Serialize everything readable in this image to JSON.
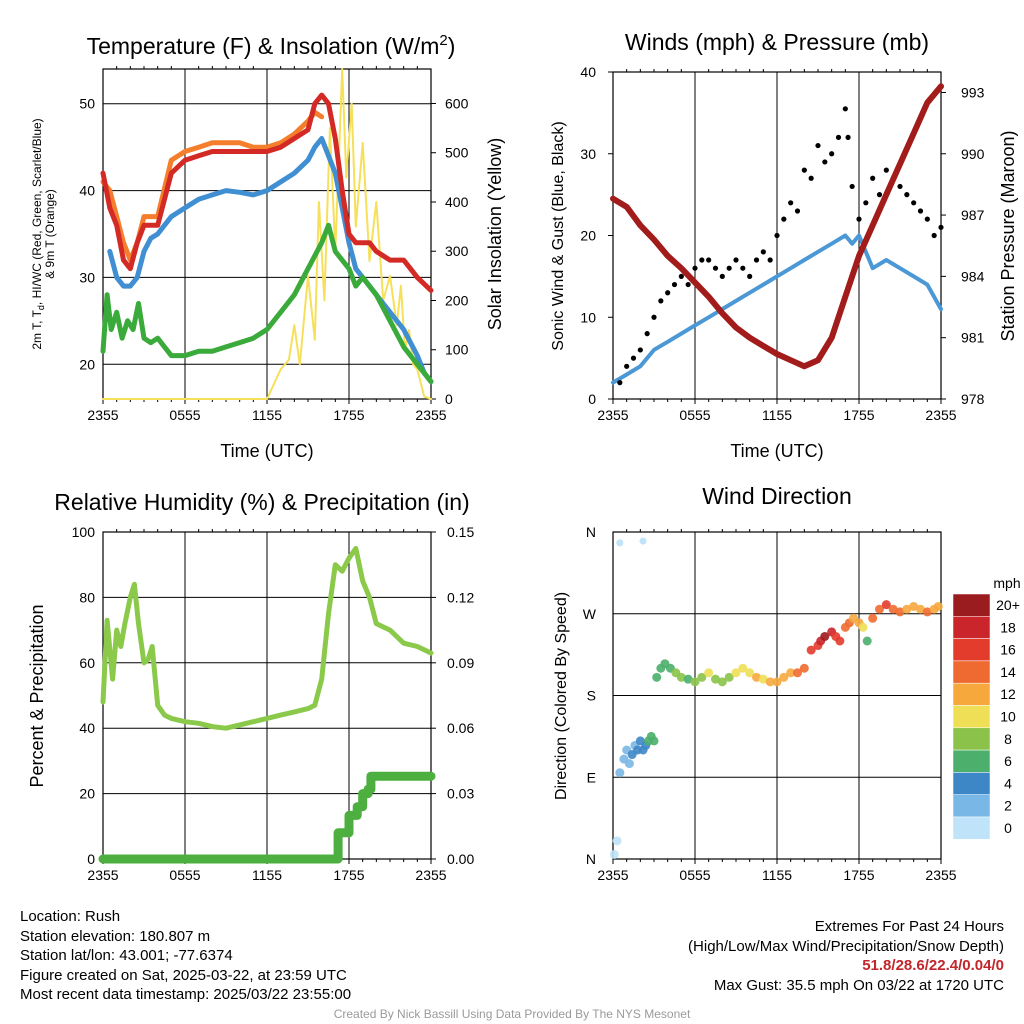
{
  "colors": {
    "temp": "#d42a26",
    "dew": "#3aaa3a",
    "hiwc": "#3f8fd2",
    "t9m": "#f47e2b",
    "insolation": "#f6e05a",
    "wind": "#4b98d6",
    "gust": "#000000",
    "pressure": "#a21c1c",
    "rh": "#8bc94a",
    "precip": "#4caf3f"
  },
  "chart_data": [
    {
      "id": "temperature",
      "type": "line",
      "title": "Temperature (F) & Insolation (W/m²)",
      "title_main": "Temperature (F) & Insolation (W/m",
      "title_sup": "2",
      "title_end": ")",
      "xlabel": "Time (UTC)",
      "ylabel": "2m T, Td, HI/WC (Red, Green, Scarlet/Blue) & 9m T (Orange)",
      "ylabel_line1": "2m T, T",
      "ylabel_sub": "d",
      "ylabel_line1_end": ", HI/WC (Red, Green, Scarlet/Blue)",
      "ylabel_line2": "& 9m T (Orange)",
      "y2label": "Solar Insolation (Yellow)",
      "x_ticks": [
        "2355",
        "0555",
        "1155",
        "1755",
        "2355"
      ],
      "ylim": [
        16,
        54
      ],
      "y_ticks": [
        20,
        30,
        40,
        50
      ],
      "y2lim": [
        0,
        670
      ],
      "y2_ticks": [
        0,
        100,
        200,
        300,
        400,
        500,
        600
      ],
      "series": [
        {
          "name": "Solar Insolation",
          "color": "insolation",
          "x": [
            0,
            12,
            13,
            13.6,
            14,
            14.4,
            15,
            15.5,
            15.8,
            16.2,
            16.6,
            17,
            17.5,
            17.8,
            18.2,
            18.5,
            19,
            19.5,
            20,
            20.5,
            21,
            21.5,
            21.8,
            22.1,
            22.4,
            22.7,
            23,
            23.5,
            24
          ],
          "y": [
            0,
            0,
            60,
            80,
            150,
            70,
            250,
            120,
            400,
            200,
            550,
            300,
            670,
            450,
            600,
            350,
            520,
            280,
            400,
            200,
            250,
            150,
            230,
            100,
            140,
            70,
            60,
            5,
            0
          ]
        },
        {
          "name": "HI/WC",
          "color": "hiwc",
          "x": [
            0.5,
            1,
            1.5,
            2,
            2.5,
            3,
            3.5,
            4,
            5,
            6,
            7,
            8,
            9,
            10,
            11,
            12,
            13,
            14,
            15,
            15.5,
            16,
            16.5,
            17,
            17.5,
            18,
            18.5,
            19,
            20,
            21,
            22,
            23,
            23.5,
            24
          ],
          "y": [
            33,
            30,
            29,
            29,
            30,
            33,
            34.5,
            35,
            37,
            38,
            39,
            39.5,
            40,
            39.8,
            39.5,
            40,
            41,
            42,
            43.5,
            45,
            46,
            44,
            42,
            38,
            34,
            31,
            30,
            28,
            26,
            24,
            21,
            19,
            18
          ]
        },
        {
          "name": "9m T",
          "color": "t9m",
          "x": [
            0,
            0.5,
            1,
            1.5,
            2,
            2.5,
            3,
            3.5,
            4,
            5,
            6,
            7,
            8,
            9,
            10,
            11,
            12,
            13,
            14,
            15,
            15.5,
            16
          ],
          "y": [
            41,
            40,
            37,
            34,
            32,
            34,
            37,
            37,
            37,
            43.5,
            44.5,
            45,
            45.5,
            45.5,
            45.5,
            45,
            45,
            45.5,
            46.5,
            48,
            49,
            48.5
          ]
        },
        {
          "name": "Dewpoint",
          "color": "dew",
          "x": [
            0,
            0.3,
            0.6,
            1,
            1.4,
            1.8,
            2.2,
            2.6,
            3,
            3.5,
            4,
            4.5,
            5,
            6,
            7,
            8,
            9,
            10,
            11,
            12,
            13,
            14,
            15,
            16,
            16.5,
            17,
            18,
            18.5,
            19,
            20,
            21,
            22,
            23,
            24
          ],
          "y": [
            21.5,
            28,
            24,
            26,
            23,
            25,
            24,
            27,
            23,
            22.5,
            23,
            22,
            21,
            21,
            21.5,
            21.5,
            22,
            22.5,
            23,
            24,
            26,
            28,
            31,
            34,
            36,
            33,
            31,
            29,
            30,
            28,
            25,
            22,
            20,
            18
          ]
        },
        {
          "name": "2m T",
          "color": "temp",
          "x": [
            0,
            0.5,
            1,
            1.5,
            2,
            2.5,
            3,
            3.5,
            4,
            5,
            6,
            7,
            8,
            9,
            10,
            11,
            12,
            13,
            14,
            15,
            15.5,
            16,
            16.5,
            17,
            17.5,
            18,
            18.5,
            19,
            19.5,
            20,
            21,
            22,
            23,
            24
          ],
          "y": [
            42,
            38,
            36,
            32,
            31,
            34,
            36,
            36,
            36,
            42,
            43.5,
            44,
            44.5,
            44.5,
            44.5,
            44.5,
            44.5,
            45,
            46,
            47,
            50,
            51,
            50,
            46,
            40,
            35,
            34,
            34,
            34,
            33,
            32,
            32,
            30,
            28.5
          ]
        }
      ]
    },
    {
      "id": "winds",
      "type": "line",
      "title": "Winds (mph) & Pressure (mb)",
      "xlabel": "Time (UTC)",
      "ylabel": "Sonic Wind & Gust (Blue, Black)",
      "y2label": "Station Pressure (Maroon)",
      "x_ticks": [
        "2355",
        "0555",
        "1155",
        "1755",
        "2355"
      ],
      "ylim": [
        0,
        40
      ],
      "y_ticks": [
        0,
        10,
        20,
        30,
        40
      ],
      "y2lim": [
        978,
        994
      ],
      "y2_ticks": [
        978,
        981,
        984,
        987,
        990,
        993
      ],
      "series": [
        {
          "name": "Sonic Wind",
          "color": "wind",
          "x": [
            0,
            1,
            2,
            3,
            4,
            5,
            6,
            7,
            8,
            9,
            10,
            11,
            12,
            13,
            14,
            15,
            16,
            17,
            17.5,
            18,
            19,
            20,
            21,
            22,
            23,
            24
          ],
          "y": [
            2,
            3,
            4,
            6,
            7,
            8,
            9,
            10,
            11,
            12,
            13,
            14,
            15,
            16,
            17,
            18,
            19,
            20,
            19,
            20,
            16,
            17,
            16,
            15,
            14,
            11
          ]
        },
        {
          "name": "Gust",
          "color": "gust",
          "style": "points",
          "x": [
            0.5,
            1,
            1.5,
            2,
            2.5,
            3,
            3.5,
            4,
            4.5,
            5,
            5.5,
            6,
            6.5,
            7,
            7.5,
            8,
            8.5,
            9,
            9.5,
            10,
            10.5,
            11,
            11.5,
            12,
            12.5,
            13,
            13.5,
            14,
            14.5,
            15,
            15.5,
            16,
            16.5,
            17,
            17.2,
            17.5,
            18,
            18.5,
            19,
            19.5,
            20,
            20.5,
            21,
            21.5,
            22,
            22.5,
            23,
            23.5,
            24
          ],
          "y": [
            2,
            4,
            5,
            6,
            8,
            10,
            12,
            13,
            14,
            15,
            14,
            16,
            17,
            17,
            16,
            15,
            16,
            17,
            16,
            15,
            17,
            18,
            17,
            20,
            22,
            24,
            23,
            28,
            27,
            31,
            29,
            30,
            32,
            35.5,
            32,
            26,
            22,
            24,
            27,
            25,
            28,
            27,
            26,
            25,
            24,
            23,
            22,
            20,
            21
          ]
        },
        {
          "name": "Station Pressure",
          "color": "pressure",
          "x": [
            0,
            1,
            2,
            3,
            4,
            5,
            6,
            7,
            8,
            9,
            10,
            11,
            12,
            13,
            14,
            15,
            16,
            17,
            18,
            19,
            20,
            21,
            22,
            23,
            24
          ],
          "y": [
            987.8,
            987.4,
            986.5,
            985.8,
            985.0,
            984.4,
            983.7,
            983.0,
            982.2,
            981.5,
            981.0,
            980.6,
            980.2,
            979.9,
            979.6,
            979.9,
            981,
            983,
            985,
            986.5,
            988,
            989.5,
            991,
            992.5,
            993.3
          ]
        }
      ]
    },
    {
      "id": "humidity",
      "type": "line",
      "title": "Relative Humidity (%) & Precipitation (in)",
      "ylabel": "Percent & Precipitation",
      "x_ticks": [
        "2355",
        "0555",
        "1155",
        "1755",
        "2355"
      ],
      "ylim": [
        0,
        100
      ],
      "y_ticks": [
        0,
        20,
        40,
        60,
        80,
        100
      ],
      "y2lim": [
        0,
        0.15
      ],
      "y2_ticks": [
        "0.00",
        "0.03",
        "0.06",
        "0.09",
        "0.12",
        "0.15"
      ],
      "series": [
        {
          "name": "Relative Humidity",
          "color": "rh",
          "x": [
            0,
            0.3,
            0.7,
            1,
            1.3,
            1.6,
            2,
            2.3,
            2.6,
            3,
            3.3,
            3.6,
            4,
            4.5,
            5,
            6,
            7,
            8,
            9,
            10,
            11,
            12,
            13,
            14,
            15,
            15.5,
            16,
            16.5,
            17,
            17.5,
            18,
            18.5,
            19,
            19.5,
            20,
            21,
            22,
            23,
            24
          ],
          "y": [
            48,
            73,
            55,
            70,
            65,
            72,
            80,
            84,
            72,
            60,
            61,
            65,
            47,
            44,
            43,
            42,
            41.5,
            40.5,
            40,
            41,
            42,
            43,
            44,
            45,
            46,
            47,
            55,
            75,
            90,
            88,
            92,
            95,
            85,
            80,
            72,
            70,
            66,
            65,
            63
          ]
        },
        {
          "name": "Precipitation",
          "color": "precip",
          "style": "steps",
          "x": [
            0,
            17,
            17.2,
            17.4,
            18,
            18.6,
            19,
            19.4,
            19.6,
            24
          ],
          "y": [
            0,
            0,
            0.012,
            0.012,
            0.02,
            0.024,
            0.03,
            0.032,
            0.038,
            0.038
          ]
        }
      ]
    },
    {
      "id": "direction",
      "type": "scatter",
      "title": "Wind Direction",
      "ylabel": "Direction (Colored By Speed)",
      "x_ticks": [
        "2355",
        "0555",
        "1155",
        "1755",
        "2355"
      ],
      "y_ticks": [
        "N",
        "E",
        "S",
        "W",
        "N"
      ],
      "ylim": [
        0,
        360
      ],
      "colorbar": {
        "unit": "mph",
        "labels": [
          "20+",
          "18",
          "16",
          "14",
          "12",
          "10",
          "8",
          "6",
          "4",
          "2",
          "0"
        ],
        "colors": [
          "#9a1c1f",
          "#c9252b",
          "#e33b2c",
          "#ef6a30",
          "#f6a83d",
          "#eedf57",
          "#8bc34a",
          "#4caf6b",
          "#3e87c6",
          "#79b7e6",
          "#bfe3f8"
        ]
      },
      "points": {
        "x": [
          0.1,
          0.3,
          0.5,
          0.8,
          1,
          1.2,
          1.4,
          1.6,
          1.8,
          2,
          2.2,
          2.4,
          2.6,
          2.8,
          3,
          3.2,
          3.5,
          3.8,
          4.2,
          4.6,
          5,
          5.5,
          6,
          6.5,
          7,
          7.5,
          8,
          8.5,
          9,
          9.5,
          10,
          10.5,
          11,
          11.5,
          12,
          12.5,
          13,
          13.5,
          14,
          14.5,
          15,
          15.2,
          15.5,
          16,
          16.3,
          16.6,
          17,
          17.3,
          17.6,
          18,
          18.3,
          18.6,
          19,
          19.5,
          20,
          20.5,
          21,
          21.5,
          22,
          22.5,
          23,
          23.5,
          23.8
        ],
        "y": [
          5,
          20,
          95,
          110,
          120,
          105,
          115,
          125,
          120,
          130,
          120,
          125,
          130,
          135,
          130,
          200,
          210,
          215,
          210,
          205,
          200,
          198,
          195,
          200,
          205,
          198,
          195,
          200,
          205,
          210,
          205,
          200,
          198,
          195,
          195,
          200,
          205,
          205,
          210,
          230,
          235,
          240,
          245,
          250,
          245,
          240,
          255,
          260,
          265,
          260,
          255,
          240,
          265,
          275,
          280,
          275,
          272,
          275,
          278,
          275,
          272,
          275,
          278
        ],
        "speed": [
          1,
          1,
          2,
          2,
          3,
          2,
          4,
          3,
          4,
          5,
          4,
          5,
          6,
          6,
          7,
          6,
          7,
          6,
          7,
          8,
          8,
          7,
          8,
          9,
          10,
          9,
          8,
          9,
          10,
          11,
          10,
          12,
          11,
          12,
          13,
          12,
          13,
          14,
          15,
          16,
          17,
          18,
          20,
          19,
          17,
          16,
          15,
          14,
          13,
          12,
          11,
          6,
          14,
          15,
          16,
          15,
          14,
          13,
          12,
          13,
          14,
          13,
          12
        ]
      },
      "outliers": {
        "x": [
          0.5,
          2.2
        ],
        "y": [
          348,
          350
        ],
        "speed": [
          1,
          1
        ]
      }
    }
  ],
  "footer": {
    "location": "Location: Rush",
    "elevation": "Station elevation: 180.807 m",
    "latlon": "Station lat/lon: 43.001; -77.6374",
    "created": "Figure created on Sat, 2025-03-22, at 23:59 UTC",
    "recent": "Most recent data timestamp: 2025/03/22 23:55:00",
    "extremes_title": "Extremes For Past 24 Hours",
    "extremes_legend": "(High/Low/Max Wind/Precipitation/Snow Depth)",
    "extremes_values": "51.8/28.6/22.4/0.04/0",
    "max_gust": "Max Gust: 35.5 mph On 03/22 at 1720 UTC",
    "credit": "Created By Nick Bassill Using Data Provided By The NYS Mesonet"
  }
}
